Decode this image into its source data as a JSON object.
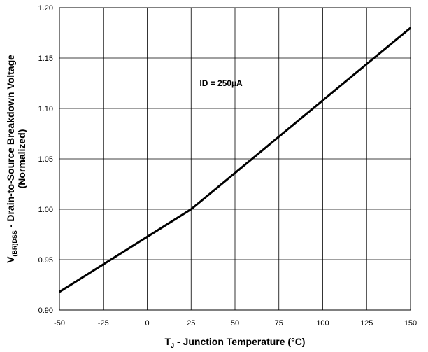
{
  "chart_data": {
    "type": "line",
    "title": "",
    "xlabel": {
      "main": "T",
      "sub": "J",
      "rest": " - Junction Temperature (°C)"
    },
    "ylabel": {
      "line1_main": "V",
      "line1_sub": "(BR)DSS",
      "line1_rest": " - Drain-to-Source Breakdown Voltage",
      "line2": "(Normalized)"
    },
    "xlim": [
      -50,
      150
    ],
    "ylim": [
      0.9,
      1.2
    ],
    "xticks": [
      -50,
      -25,
      0,
      25,
      50,
      75,
      100,
      125,
      150
    ],
    "xtick_labels": [
      "-50",
      "-25",
      "0",
      "25",
      "50",
      "75",
      "100",
      "125",
      "150"
    ],
    "yticks": [
      0.9,
      0.95,
      1.0,
      1.05,
      1.1,
      1.15,
      1.2
    ],
    "ytick_labels": [
      "0.90",
      "0.95",
      "1.00",
      "1.05",
      "1.10",
      "1.15",
      "1.20"
    ],
    "grid": true,
    "legend": "none",
    "annotation": {
      "text": "ID = 250µA",
      "x": 50,
      "y": 1.125
    },
    "series": [
      {
        "x": [
          -50,
          25,
          150
        ],
        "y": [
          0.918,
          1.0,
          1.18
        ],
        "color": "#000000"
      }
    ]
  }
}
